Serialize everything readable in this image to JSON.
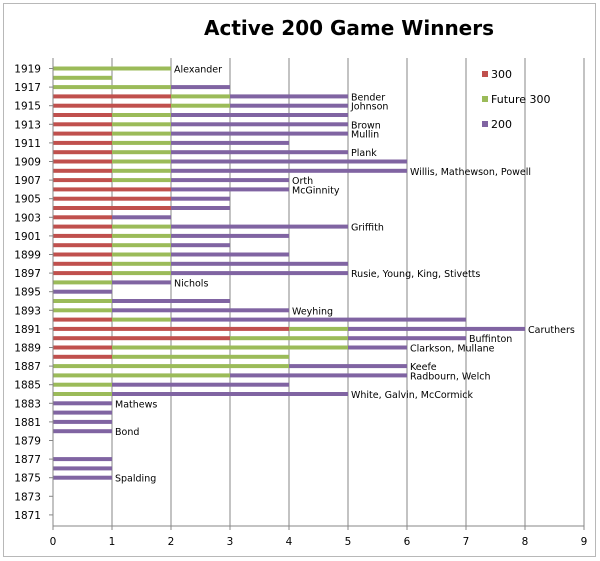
{
  "chart_data": {
    "type": "bar",
    "orientation": "horizontal",
    "stacked": true,
    "title": "Active 200 Game Winners",
    "xlim": [
      0,
      9
    ],
    "x_ticks": [
      0,
      1,
      2,
      3,
      4,
      5,
      6,
      7,
      8,
      9
    ],
    "ylim": [
      1871,
      1919
    ],
    "y_ticks": [
      1871,
      1873,
      1875,
      1877,
      1879,
      1881,
      1883,
      1885,
      1887,
      1889,
      1891,
      1893,
      1895,
      1897,
      1899,
      1901,
      1903,
      1905,
      1907,
      1909,
      1911,
      1913,
      1915,
      1917,
      1919
    ],
    "grid": "vertical",
    "legend_position": "top-right",
    "series": [
      {
        "name": "300",
        "color": "#C0504D"
      },
      {
        "name": "Future 300",
        "color": "#9BBB59"
      },
      {
        "name": "200",
        "color": "#8064A2"
      }
    ],
    "bars": [
      {
        "year": 1919,
        "s300": 0,
        "f300": 2,
        "s200": 0
      },
      {
        "year": 1918,
        "s300": 0,
        "f300": 1,
        "s200": 0
      },
      {
        "year": 1917,
        "s300": 0,
        "f300": 2,
        "s200": 1
      },
      {
        "year": 1916,
        "s300": 2,
        "f300": 1,
        "s200": 2
      },
      {
        "year": 1915,
        "s300": 2,
        "f300": 1,
        "s200": 2
      },
      {
        "year": 1914,
        "s300": 1,
        "f300": 1,
        "s200": 3
      },
      {
        "year": 1913,
        "s300": 1,
        "f300": 1,
        "s200": 3
      },
      {
        "year": 1912,
        "s300": 1,
        "f300": 1,
        "s200": 3
      },
      {
        "year": 1911,
        "s300": 1,
        "f300": 1,
        "s200": 2
      },
      {
        "year": 1910,
        "s300": 1,
        "f300": 1,
        "s200": 3
      },
      {
        "year": 1909,
        "s300": 1,
        "f300": 1,
        "s200": 4
      },
      {
        "year": 1908,
        "s300": 1,
        "f300": 1,
        "s200": 4
      },
      {
        "year": 1907,
        "s300": 1,
        "f300": 1,
        "s200": 2
      },
      {
        "year": 1906,
        "s300": 2,
        "f300": 0,
        "s200": 2
      },
      {
        "year": 1905,
        "s300": 2,
        "f300": 0,
        "s200": 1
      },
      {
        "year": 1904,
        "s300": 2,
        "f300": 0,
        "s200": 1
      },
      {
        "year": 1903,
        "s300": 1,
        "f300": 0,
        "s200": 1
      },
      {
        "year": 1902,
        "s300": 1,
        "f300": 1,
        "s200": 3
      },
      {
        "year": 1901,
        "s300": 1,
        "f300": 1,
        "s200": 2
      },
      {
        "year": 1900,
        "s300": 1,
        "f300": 1,
        "s200": 1
      },
      {
        "year": 1899,
        "s300": 1,
        "f300": 1,
        "s200": 2
      },
      {
        "year": 1898,
        "s300": 1,
        "f300": 1,
        "s200": 3
      },
      {
        "year": 1897,
        "s300": 1,
        "f300": 1,
        "s200": 3
      },
      {
        "year": 1896,
        "s300": 0,
        "f300": 1,
        "s200": 1
      },
      {
        "year": 1895,
        "s300": 0,
        "f300": 0,
        "s200": 1
      },
      {
        "year": 1894,
        "s300": 0,
        "f300": 1,
        "s200": 2
      },
      {
        "year": 1893,
        "s300": 0,
        "f300": 1,
        "s200": 3
      },
      {
        "year": 1892,
        "s300": 1,
        "f300": 1,
        "s200": 5
      },
      {
        "year": 1891,
        "s300": 4,
        "f300": 1,
        "s200": 3
      },
      {
        "year": 1890,
        "s300": 3,
        "f300": 2,
        "s200": 2
      },
      {
        "year": 1889,
        "s300": 1,
        "f300": 4,
        "s200": 1
      },
      {
        "year": 1888,
        "s300": 1,
        "f300": 3,
        "s200": 0
      },
      {
        "year": 1887,
        "s300": 0,
        "f300": 4,
        "s200": 2
      },
      {
        "year": 1886,
        "s300": 0,
        "f300": 3,
        "s200": 3
      },
      {
        "year": 1885,
        "s300": 0,
        "f300": 1,
        "s200": 3
      },
      {
        "year": 1884,
        "s300": 0,
        "f300": 1,
        "s200": 4
      },
      {
        "year": 1883,
        "s300": 0,
        "f300": 0,
        "s200": 1
      },
      {
        "year": 1882,
        "s300": 0,
        "f300": 0,
        "s200": 1
      },
      {
        "year": 1881,
        "s300": 0,
        "f300": 0,
        "s200": 1
      },
      {
        "year": 1880,
        "s300": 0,
        "f300": 0,
        "s200": 1
      },
      {
        "year": 1877,
        "s300": 0,
        "f300": 0,
        "s200": 1
      },
      {
        "year": 1876,
        "s300": 0,
        "f300": 0,
        "s200": 1
      },
      {
        "year": 1875,
        "s300": 0,
        "f300": 0,
        "s200": 1
      }
    ],
    "annotations": [
      {
        "year": 1919,
        "text": "Alexander"
      },
      {
        "year": 1916,
        "text": "Bender"
      },
      {
        "year": 1915,
        "text": "Johnson"
      },
      {
        "year": 1913,
        "text": "Brown"
      },
      {
        "year": 1912,
        "text": "Mullin"
      },
      {
        "year": 1910,
        "text": "Plank"
      },
      {
        "year": 1908,
        "text": "Willis, Mathewson, Powell"
      },
      {
        "year": 1907,
        "text": "Orth"
      },
      {
        "year": 1906,
        "text": "McGinnity"
      },
      {
        "year": 1902,
        "text": "Griffith"
      },
      {
        "year": 1897,
        "text": "Rusie, Young, King, Stivetts"
      },
      {
        "year": 1896,
        "text": "Nichols"
      },
      {
        "year": 1893,
        "text": "Weyhing"
      },
      {
        "year": 1891,
        "text": "Caruthers"
      },
      {
        "year": 1890,
        "text": "Buffinton"
      },
      {
        "year": 1889,
        "text": "Clarkson, Mullane"
      },
      {
        "year": 1887,
        "text": "Keefe"
      },
      {
        "year": 1886,
        "text": "Radbourn, Welch"
      },
      {
        "year": 1884,
        "text": "White, Galvin, McCormick"
      },
      {
        "year": 1883,
        "text": "Mathews"
      },
      {
        "year": 1880,
        "text": "Bond"
      },
      {
        "year": 1875,
        "text": "Spalding"
      }
    ]
  }
}
